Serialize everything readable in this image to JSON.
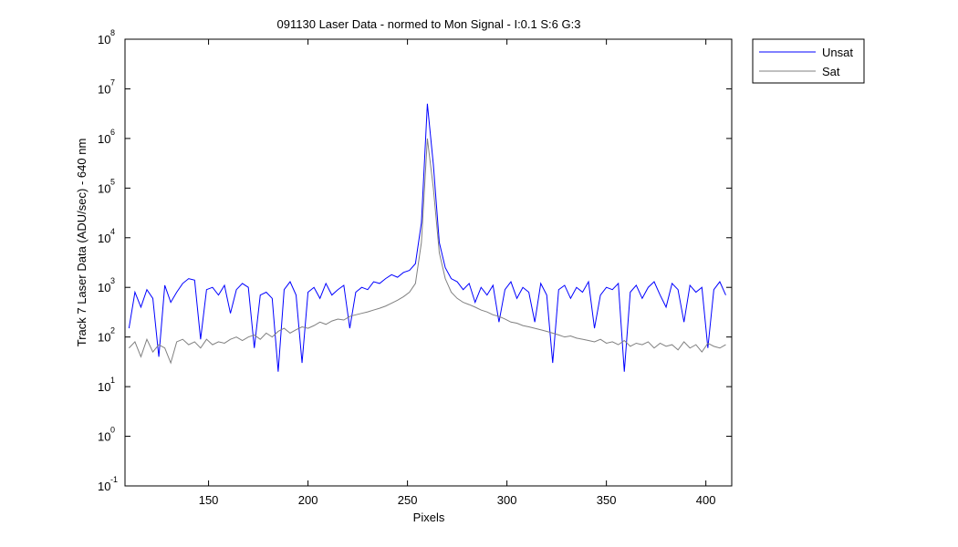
{
  "chart_data": {
    "type": "line",
    "title": "091130 Laser Data - normed to Mon Signal -   I:0.1  S:6  G:3",
    "xlabel": "Pixels",
    "ylabel": "Track 7 Laser Data (ADU/sec) - 640 nm",
    "x": [
      110,
      113,
      116,
      119,
      122,
      125,
      128,
      131,
      134,
      137,
      140,
      143,
      146,
      149,
      152,
      155,
      158,
      161,
      164,
      167,
      170,
      173,
      176,
      179,
      182,
      185,
      188,
      191,
      194,
      197,
      200,
      203,
      206,
      209,
      212,
      215,
      218,
      221,
      224,
      227,
      230,
      233,
      236,
      239,
      242,
      245,
      248,
      251,
      254,
      257,
      260,
      263,
      266,
      269,
      272,
      275,
      278,
      281,
      284,
      287,
      290,
      293,
      296,
      299,
      302,
      305,
      308,
      311,
      314,
      317,
      320,
      323,
      326,
      329,
      332,
      335,
      338,
      341,
      344,
      347,
      350,
      353,
      356,
      359,
      362,
      365,
      368,
      371,
      374,
      377,
      380,
      383,
      386,
      389,
      392,
      395,
      398,
      401,
      404,
      407,
      410
    ],
    "series": [
      {
        "name": "Unsat",
        "color": "#0000ff",
        "values": [
          150,
          800,
          400,
          900,
          600,
          40,
          1100,
          500,
          800,
          1200,
          1500,
          1400,
          90,
          900,
          1000,
          700,
          1100,
          300,
          900,
          1200,
          1000,
          60,
          700,
          800,
          600,
          20,
          900,
          1300,
          700,
          30,
          800,
          1000,
          600,
          1200,
          700,
          900,
          1100,
          150,
          800,
          1000,
          900,
          1300,
          1200,
          1500,
          1800,
          1600,
          2000,
          2200,
          3000,
          20000,
          5000000,
          300000,
          8000,
          2500,
          1500,
          1300,
          900,
          1200,
          500,
          1000,
          700,
          1100,
          200,
          900,
          1300,
          600,
          1000,
          800,
          200,
          1200,
          700,
          30,
          900,
          1100,
          600,
          1000,
          800,
          1300,
          150,
          700,
          1000,
          900,
          1200,
          20,
          800,
          1100,
          600,
          1000,
          1300,
          700,
          400,
          1200,
          900,
          200,
          1100,
          800,
          1000,
          60,
          900,
          1300,
          700
        ]
      },
      {
        "name": "Sat",
        "color": "#808080",
        "values": [
          60,
          80,
          40,
          90,
          50,
          70,
          60,
          30,
          80,
          90,
          70,
          80,
          60,
          90,
          70,
          80,
          75,
          90,
          100,
          85,
          100,
          110,
          90,
          120,
          100,
          130,
          150,
          120,
          140,
          160,
          150,
          170,
          200,
          180,
          210,
          230,
          220,
          260,
          280,
          300,
          320,
          350,
          380,
          420,
          480,
          550,
          650,
          800,
          1200,
          8000,
          1000000,
          100000,
          5000,
          1500,
          800,
          600,
          500,
          450,
          400,
          350,
          320,
          280,
          260,
          230,
          200,
          190,
          170,
          160,
          150,
          140,
          130,
          120,
          110,
          100,
          105,
          95,
          90,
          85,
          80,
          90,
          75,
          80,
          70,
          85,
          65,
          75,
          70,
          80,
          60,
          75,
          65,
          70,
          55,
          80,
          60,
          70,
          50,
          75,
          65,
          60,
          70
        ]
      }
    ],
    "xlim": [
      108,
      413
    ],
    "xticks": [
      150,
      200,
      250,
      300,
      350,
      400
    ],
    "ylim": [
      0.1,
      100000000
    ],
    "ylog": true,
    "yticks": [
      {
        "value": 0.1,
        "label": "10",
        "exponent": "-1"
      },
      {
        "value": 1,
        "label": "10",
        "exponent": "0"
      },
      {
        "value": 10,
        "label": "10",
        "exponent": "1"
      },
      {
        "value": 100,
        "label": "10",
        "exponent": "2"
      },
      {
        "value": 1000,
        "label": "10",
        "exponent": "3"
      },
      {
        "value": 10000,
        "label": "10",
        "exponent": "4"
      },
      {
        "value": 100000,
        "label": "10",
        "exponent": "5"
      },
      {
        "value": 1000000,
        "label": "10",
        "exponent": "6"
      },
      {
        "value": 10000000,
        "label": "10",
        "exponent": "7"
      },
      {
        "value": 100000000,
        "label": "10",
        "exponent": "8"
      }
    ],
    "grid": false,
    "legend": "outside-top-right"
  }
}
